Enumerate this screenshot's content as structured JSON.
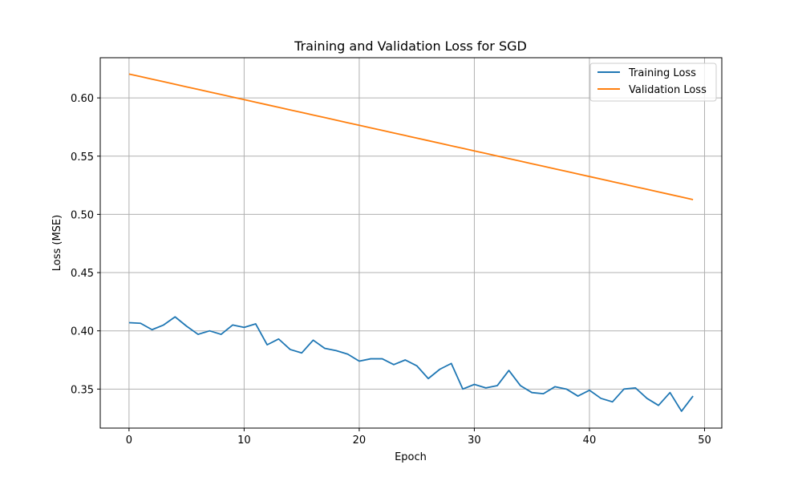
{
  "chart_data": {
    "type": "line",
    "title": "Training and Validation Loss for SGD",
    "xlabel": "Epoch",
    "ylabel": "Loss (MSE)",
    "xlim": [
      -2.5,
      51.5
    ],
    "ylim": [
      0.3165,
      0.6345
    ],
    "xticks": [
      0,
      10,
      20,
      30,
      40,
      50
    ],
    "yticks": [
      0.35,
      0.4,
      0.45,
      0.5,
      0.55,
      0.6
    ],
    "ytick_labels": [
      "0.35",
      "0.40",
      "0.45",
      "0.50",
      "0.55",
      "0.60"
    ],
    "grid": true,
    "legend_position": "top-right",
    "x": [
      0,
      1,
      2,
      3,
      4,
      5,
      6,
      7,
      8,
      9,
      10,
      11,
      12,
      13,
      14,
      15,
      16,
      17,
      18,
      19,
      20,
      21,
      22,
      23,
      24,
      25,
      26,
      27,
      28,
      29,
      30,
      31,
      32,
      33,
      34,
      35,
      36,
      37,
      38,
      39,
      40,
      41,
      42,
      43,
      44,
      45,
      46,
      47,
      48,
      49
    ],
    "series": [
      {
        "name": "Training Loss",
        "color": "#1f77b4",
        "values": [
          0.407,
          0.4065,
          0.401,
          0.405,
          0.412,
          0.404,
          0.397,
          0.4,
          0.397,
          0.405,
          0.403,
          0.406,
          0.388,
          0.393,
          0.384,
          0.381,
          0.392,
          0.385,
          0.383,
          0.38,
          0.374,
          0.376,
          0.376,
          0.371,
          0.375,
          0.37,
          0.359,
          0.367,
          0.372,
          0.35,
          0.354,
          0.351,
          0.353,
          0.366,
          0.353,
          0.347,
          0.346,
          0.352,
          0.35,
          0.344,
          0.349,
          0.342,
          0.339,
          0.35,
          0.351,
          0.342,
          0.336,
          0.347,
          0.331,
          0.344
        ]
      },
      {
        "name": "Validation Loss",
        "color": "#ff7f0e",
        "values": [
          0.6205,
          0.6183,
          0.6161,
          0.6139,
          0.6117,
          0.6095,
          0.6073,
          0.6051,
          0.6029,
          0.6007,
          0.5985,
          0.5963,
          0.5941,
          0.5919,
          0.5897,
          0.5875,
          0.5853,
          0.5831,
          0.5809,
          0.5787,
          0.5765,
          0.5743,
          0.5721,
          0.5699,
          0.5677,
          0.5655,
          0.5633,
          0.5611,
          0.5589,
          0.5567,
          0.5545,
          0.5523,
          0.5501,
          0.5479,
          0.5457,
          0.5435,
          0.5413,
          0.5391,
          0.5369,
          0.5347,
          0.5325,
          0.5303,
          0.5281,
          0.5259,
          0.5237,
          0.5215,
          0.5193,
          0.5171,
          0.5149,
          0.5127
        ]
      }
    ]
  }
}
